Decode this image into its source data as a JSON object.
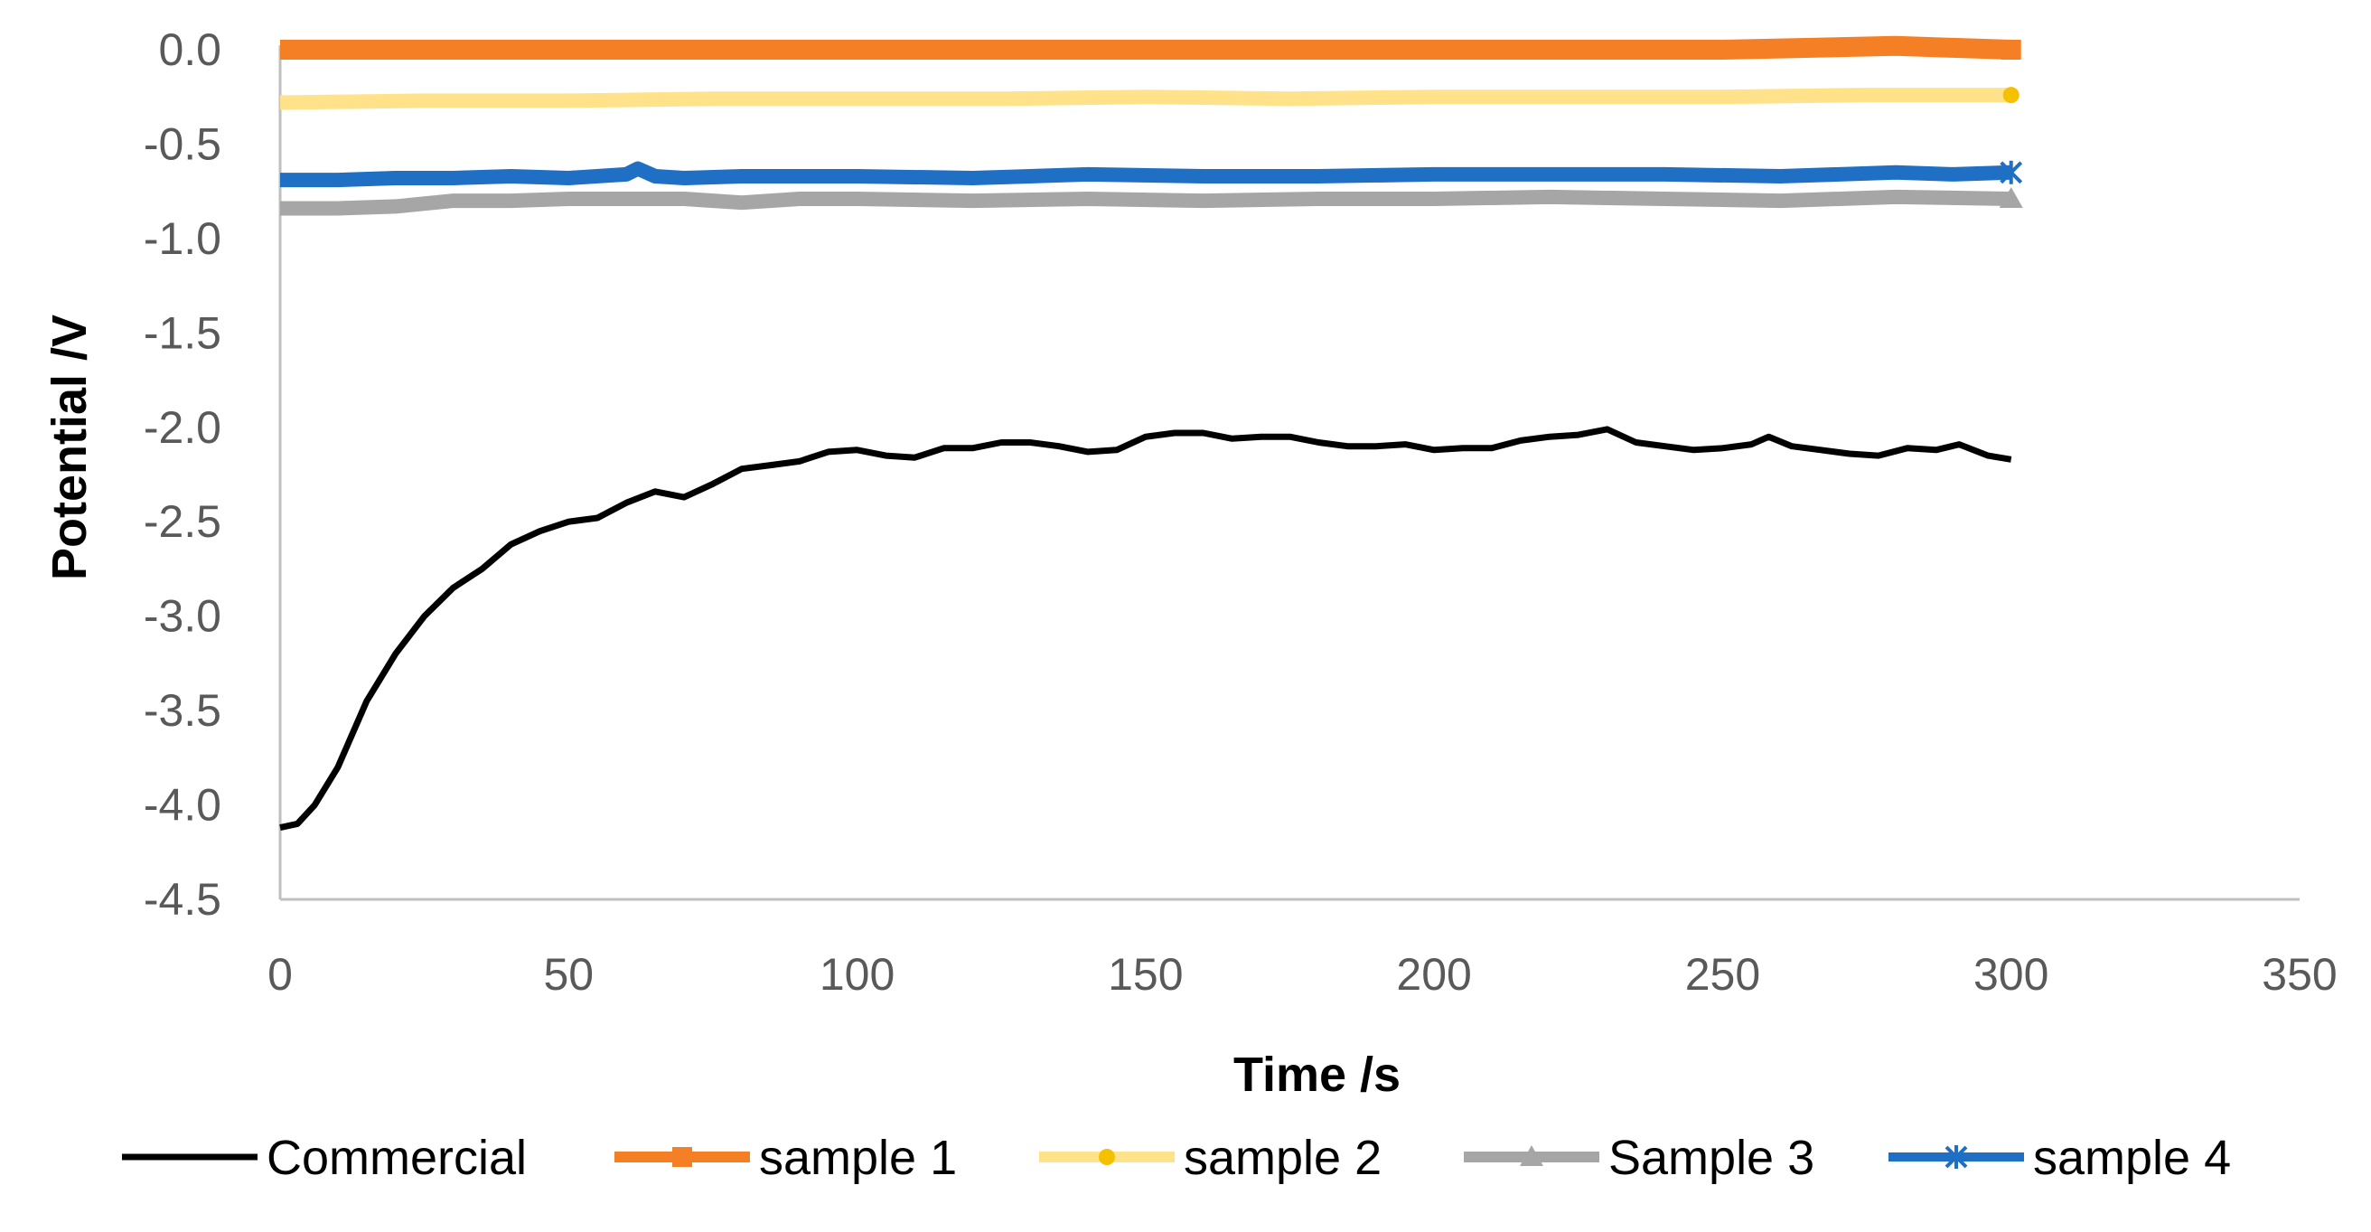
{
  "chart_data": {
    "type": "line",
    "title": "",
    "xlabel": "Time /s",
    "ylabel": "Potential /V",
    "xlim": [
      0,
      350
    ],
    "ylim": [
      -4.5,
      0.0
    ],
    "x_ticks": [
      "0",
      "50",
      "100",
      "150",
      "200",
      "250",
      "300",
      "350"
    ],
    "y_ticks": [
      "0.0",
      "-0.5",
      "-1.0",
      "-1.5",
      "-2.0",
      "-2.5",
      "-3.0",
      "-3.5",
      "-4.0",
      "-4.5"
    ],
    "grid": false,
    "legend_position": "bottom",
    "series": [
      {
        "name": "Commercial",
        "color": "#000000",
        "marker": "none",
        "x": [
          0,
          3,
          6,
          10,
          15,
          20,
          25,
          30,
          35,
          40,
          45,
          50,
          55,
          60,
          65,
          70,
          75,
          80,
          85,
          90,
          95,
          100,
          105,
          110,
          115,
          120,
          125,
          130,
          135,
          140,
          145,
          150,
          155,
          160,
          165,
          170,
          175,
          180,
          185,
          190,
          195,
          200,
          205,
          210,
          215,
          220,
          225,
          230,
          235,
          240,
          245,
          250,
          255,
          258,
          262,
          267,
          272,
          277,
          282,
          287,
          291,
          296,
          300
        ],
        "y": [
          -4.12,
          -4.1,
          -4.0,
          -3.8,
          -3.45,
          -3.2,
          -3.0,
          -2.85,
          -2.75,
          -2.62,
          -2.55,
          -2.5,
          -2.48,
          -2.4,
          -2.34,
          -2.37,
          -2.3,
          -2.22,
          -2.2,
          -2.18,
          -2.13,
          -2.12,
          -2.15,
          -2.16,
          -2.11,
          -2.11,
          -2.08,
          -2.08,
          -2.1,
          -2.13,
          -2.12,
          -2.05,
          -2.03,
          -2.03,
          -2.06,
          -2.05,
          -2.05,
          -2.08,
          -2.1,
          -2.1,
          -2.09,
          -2.12,
          -2.11,
          -2.11,
          -2.07,
          -2.05,
          -2.04,
          -2.01,
          -2.08,
          -2.1,
          -2.12,
          -2.11,
          -2.09,
          -2.05,
          -2.1,
          -2.12,
          -2.14,
          -2.15,
          -2.11,
          -2.12,
          -2.09,
          -2.15,
          -2.17
        ]
      },
      {
        "name": "sample 1",
        "color": "#F47F24",
        "marker": "square",
        "x": [
          0,
          50,
          100,
          150,
          200,
          250,
          280,
          290,
          300
        ],
        "y": [
          0.0,
          0.0,
          0.0,
          0.0,
          0.0,
          0.0,
          0.02,
          0.01,
          0.0
        ]
      },
      {
        "name": "sample 2",
        "color": "#FFE28A",
        "marker": "circle",
        "x": [
          0,
          25,
          50,
          75,
          100,
          125,
          150,
          175,
          200,
          225,
          250,
          275,
          300
        ],
        "y": [
          -0.28,
          -0.27,
          -0.27,
          -0.26,
          -0.26,
          -0.26,
          -0.25,
          -0.26,
          -0.25,
          -0.25,
          -0.25,
          -0.24,
          -0.24
        ]
      },
      {
        "name": "Sample 3",
        "color": "#A6A6A6",
        "marker": "triangle",
        "x": [
          0,
          10,
          20,
          30,
          40,
          50,
          60,
          70,
          80,
          90,
          100,
          120,
          140,
          160,
          180,
          200,
          220,
          240,
          260,
          280,
          300
        ],
        "y": [
          -0.84,
          -0.84,
          -0.83,
          -0.8,
          -0.8,
          -0.79,
          -0.79,
          -0.79,
          -0.81,
          -0.79,
          -0.79,
          -0.8,
          -0.79,
          -0.8,
          -0.79,
          -0.79,
          -0.78,
          -0.79,
          -0.8,
          -0.78,
          -0.79
        ]
      },
      {
        "name": "sample 4",
        "color": "#1F6FC5",
        "marker": "star",
        "x": [
          0,
          10,
          20,
          30,
          40,
          50,
          60,
          62,
          65,
          70,
          80,
          100,
          120,
          140,
          160,
          180,
          200,
          220,
          240,
          260,
          280,
          290,
          300
        ],
        "y": [
          -0.69,
          -0.69,
          -0.68,
          -0.68,
          -0.67,
          -0.68,
          -0.66,
          -0.63,
          -0.67,
          -0.68,
          -0.67,
          -0.67,
          -0.68,
          -0.66,
          -0.67,
          -0.67,
          -0.66,
          -0.66,
          -0.66,
          -0.67,
          -0.65,
          -0.66,
          -0.65
        ]
      }
    ]
  }
}
